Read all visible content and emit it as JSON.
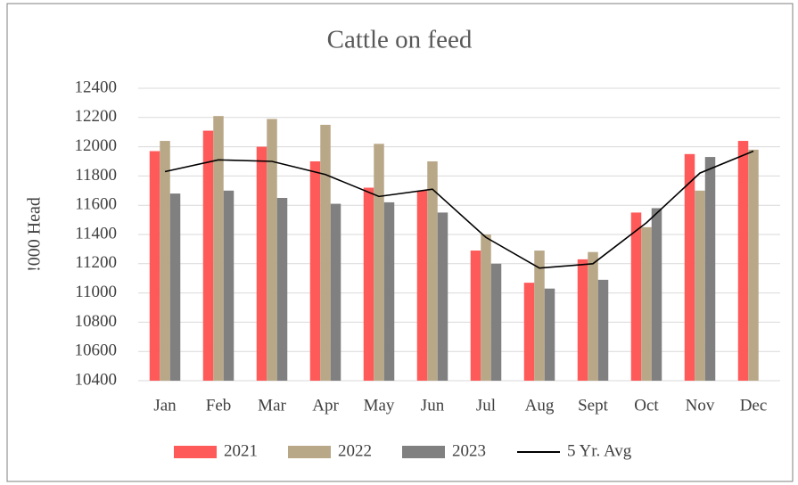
{
  "chart_data": {
    "type": "bar",
    "title": "Cattle on feed",
    "y_label": "!000 Head",
    "categories": [
      "Jan",
      "Feb",
      "Mar",
      "Apr",
      "May",
      "Jun",
      "Jul",
      "Aug",
      "Sept",
      "Oct",
      "Nov",
      "Dec"
    ],
    "series": [
      {
        "name": "2021",
        "color": "#ff5a5a",
        "values": [
          11970,
          12110,
          12000,
          11900,
          11720,
          11700,
          11290,
          11070,
          11230,
          11550,
          11950,
          12040
        ]
      },
      {
        "name": "2022",
        "color": "#b9a888",
        "values": [
          12040,
          12210,
          12190,
          12150,
          12020,
          11900,
          11400,
          11290,
          11280,
          11450,
          11700,
          11980
        ]
      },
      {
        "name": "2023",
        "color": "#808080",
        "values": [
          11680,
          11700,
          11650,
          11610,
          11620,
          11550,
          11200,
          11030,
          11090,
          11580,
          11930,
          null
        ]
      },
      {
        "name": "5 Yr. Avg",
        "type": "line",
        "color": "#000000",
        "values": [
          11830,
          11910,
          11900,
          11810,
          11660,
          11710,
          11380,
          11170,
          11200,
          11480,
          11820,
          11970
        ]
      }
    ],
    "ylim": [
      10400,
      12400
    ],
    "yticks": [
      10400,
      10600,
      10800,
      11000,
      11200,
      11400,
      11600,
      11800,
      12000,
      12200,
      12400
    ],
    "grid": true,
    "legend": "bottom"
  }
}
